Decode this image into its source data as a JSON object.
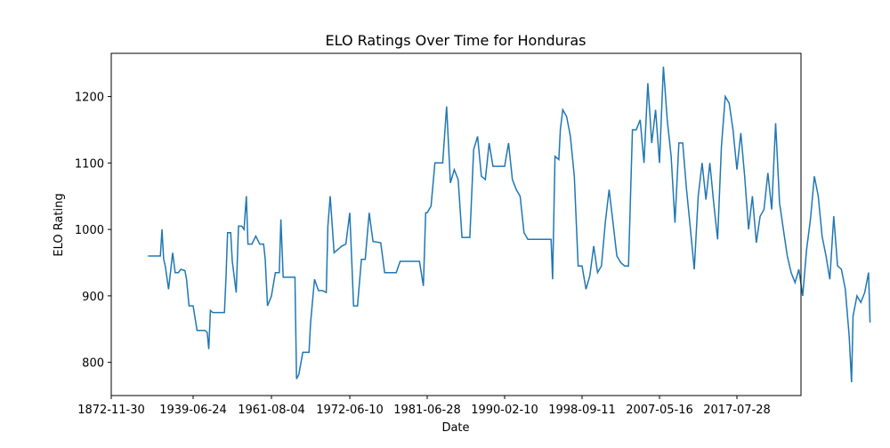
{
  "chart_data": {
    "type": "line",
    "title": "ELO Ratings Over Time for Honduras",
    "xlabel": "Date",
    "ylabel": "ELO Rating",
    "x_ticks": [
      "1872-11-30",
      "1939-06-24",
      "1961-08-04",
      "1972-06-10",
      "1981-06-28",
      "1990-02-10",
      "1998-09-11",
      "2007-05-16",
      "2017-07-28"
    ],
    "y_ticks": [
      800,
      900,
      1000,
      1100,
      1200
    ],
    "ylim": [
      750,
      1265
    ],
    "grid": false,
    "color": "#1f77b4",
    "series": [
      {
        "name": "",
        "points": [
          [
            0.45,
            960
          ],
          [
            0.6,
            960
          ],
          [
            0.62,
            1000
          ],
          [
            0.64,
            955
          ],
          [
            0.66,
            945
          ],
          [
            0.7,
            910
          ],
          [
            0.75,
            965
          ],
          [
            0.78,
            935
          ],
          [
            0.82,
            935
          ],
          [
            0.85,
            940
          ],
          [
            0.9,
            938
          ],
          [
            0.92,
            925
          ],
          [
            0.95,
            885
          ],
          [
            1.0,
            885
          ],
          [
            1.05,
            848
          ],
          [
            1.15,
            848
          ],
          [
            1.18,
            845
          ],
          [
            1.2,
            820
          ],
          [
            1.22,
            878
          ],
          [
            1.25,
            875
          ],
          [
            1.3,
            875
          ],
          [
            1.4,
            875
          ],
          [
            1.42,
            930
          ],
          [
            1.44,
            995
          ],
          [
            1.48,
            995
          ],
          [
            1.5,
            952
          ],
          [
            1.55,
            905
          ],
          [
            1.58,
            1005
          ],
          [
            1.62,
            1005
          ],
          [
            1.65,
            1000
          ],
          [
            1.68,
            1050
          ],
          [
            1.7,
            978
          ],
          [
            1.75,
            978
          ],
          [
            1.8,
            990
          ],
          [
            1.85,
            978
          ],
          [
            1.9,
            978
          ],
          [
            1.92,
            955
          ],
          [
            1.95,
            885
          ],
          [
            2.0,
            900
          ],
          [
            2.05,
            935
          ],
          [
            2.1,
            935
          ],
          [
            2.12,
            1015
          ],
          [
            2.15,
            928
          ],
          [
            2.2,
            928
          ],
          [
            2.3,
            928
          ],
          [
            2.32,
            775
          ],
          [
            2.35,
            782
          ],
          [
            2.4,
            815
          ],
          [
            2.48,
            815
          ],
          [
            2.5,
            860
          ],
          [
            2.55,
            925
          ],
          [
            2.6,
            908
          ],
          [
            2.65,
            908
          ],
          [
            2.7,
            905
          ],
          [
            2.72,
            1005
          ],
          [
            2.75,
            1050
          ],
          [
            2.8,
            965
          ],
          [
            2.9,
            975
          ],
          [
            2.95,
            978
          ],
          [
            3.0,
            1025
          ],
          [
            3.05,
            885
          ],
          [
            3.1,
            885
          ],
          [
            3.15,
            955
          ],
          [
            3.2,
            955
          ],
          [
            3.25,
            1025
          ],
          [
            3.3,
            982
          ],
          [
            3.4,
            980
          ],
          [
            3.45,
            935
          ],
          [
            3.5,
            935
          ],
          [
            3.6,
            935
          ],
          [
            3.65,
            952
          ],
          [
            3.8,
            952
          ],
          [
            3.9,
            952
          ],
          [
            3.95,
            915
          ],
          [
            3.98,
            1025
          ],
          [
            4.0,
            1025
          ],
          [
            4.05,
            1035
          ],
          [
            4.1,
            1100
          ],
          [
            4.2,
            1100
          ],
          [
            4.25,
            1185
          ],
          [
            4.3,
            1070
          ],
          [
            4.35,
            1090
          ],
          [
            4.4,
            1075
          ],
          [
            4.45,
            988
          ],
          [
            4.55,
            988
          ],
          [
            4.6,
            1120
          ],
          [
            4.65,
            1140
          ],
          [
            4.7,
            1080
          ],
          [
            4.75,
            1075
          ],
          [
            4.8,
            1130
          ],
          [
            4.85,
            1095
          ],
          [
            4.9,
            1095
          ],
          [
            4.95,
            1095
          ],
          [
            5.0,
            1095
          ],
          [
            5.05,
            1130
          ],
          [
            5.1,
            1075
          ],
          [
            5.15,
            1060
          ],
          [
            5.2,
            1050
          ],
          [
            5.25,
            995
          ],
          [
            5.3,
            985
          ],
          [
            5.4,
            985
          ],
          [
            5.5,
            985
          ],
          [
            5.6,
            985
          ],
          [
            5.62,
            925
          ],
          [
            5.65,
            1110
          ],
          [
            5.7,
            1105
          ],
          [
            5.72,
            1150
          ],
          [
            5.75,
            1180
          ],
          [
            5.8,
            1170
          ],
          [
            5.85,
            1140
          ],
          [
            5.9,
            1080
          ],
          [
            5.95,
            945
          ],
          [
            6.0,
            945
          ],
          [
            6.05,
            910
          ],
          [
            6.1,
            930
          ],
          [
            6.15,
            975
          ],
          [
            6.2,
            935
          ],
          [
            6.25,
            945
          ],
          [
            6.3,
            1010
          ],
          [
            6.35,
            1060
          ],
          [
            6.4,
            1010
          ],
          [
            6.45,
            960
          ],
          [
            6.5,
            950
          ],
          [
            6.55,
            945
          ],
          [
            6.6,
            945
          ],
          [
            6.65,
            1150
          ],
          [
            6.7,
            1150
          ],
          [
            6.75,
            1165
          ],
          [
            6.8,
            1100
          ],
          [
            6.85,
            1220
          ],
          [
            6.9,
            1130
          ],
          [
            6.95,
            1180
          ],
          [
            7.0,
            1100
          ],
          [
            7.05,
            1245
          ],
          [
            7.1,
            1165
          ],
          [
            7.15,
            1110
          ],
          [
            7.2,
            1010
          ],
          [
            7.25,
            1130
          ],
          [
            7.3,
            1130
          ],
          [
            7.35,
            1060
          ],
          [
            7.4,
            1000
          ],
          [
            7.45,
            940
          ],
          [
            7.5,
            1050
          ],
          [
            7.55,
            1100
          ],
          [
            7.6,
            1045
          ],
          [
            7.65,
            1100
          ],
          [
            7.7,
            1040
          ],
          [
            7.75,
            985
          ],
          [
            7.8,
            1125
          ],
          [
            7.85,
            1200
          ],
          [
            7.9,
            1190
          ],
          [
            7.95,
            1150
          ],
          [
            8.0,
            1090
          ],
          [
            8.05,
            1145
          ],
          [
            8.1,
            1080
          ],
          [
            8.15,
            1000
          ],
          [
            8.2,
            1050
          ],
          [
            8.25,
            980
          ],
          [
            8.3,
            1020
          ],
          [
            8.35,
            1030
          ],
          [
            8.4,
            1085
          ],
          [
            8.45,
            1030
          ],
          [
            8.5,
            1160
          ],
          [
            8.55,
            1040
          ],
          [
            8.6,
            1000
          ],
          [
            8.65,
            960
          ],
          [
            8.7,
            935
          ],
          [
            8.75,
            920
          ],
          [
            8.8,
            940
          ],
          [
            8.85,
            900
          ],
          [
            8.9,
            970
          ],
          [
            8.95,
            1015
          ],
          [
            9.0,
            1080
          ],
          [
            9.05,
            1050
          ],
          [
            9.1,
            990
          ],
          [
            9.15,
            960
          ],
          [
            9.2,
            925
          ],
          [
            9.25,
            1020
          ],
          [
            9.3,
            945
          ],
          [
            9.35,
            940
          ],
          [
            9.4,
            910
          ],
          [
            9.45,
            840
          ],
          [
            9.48,
            770
          ],
          [
            9.5,
            870
          ],
          [
            9.55,
            900
          ],
          [
            9.6,
            890
          ],
          [
            9.65,
            905
          ],
          [
            9.7,
            935
          ],
          [
            9.72,
            860
          ]
        ]
      }
    ]
  }
}
